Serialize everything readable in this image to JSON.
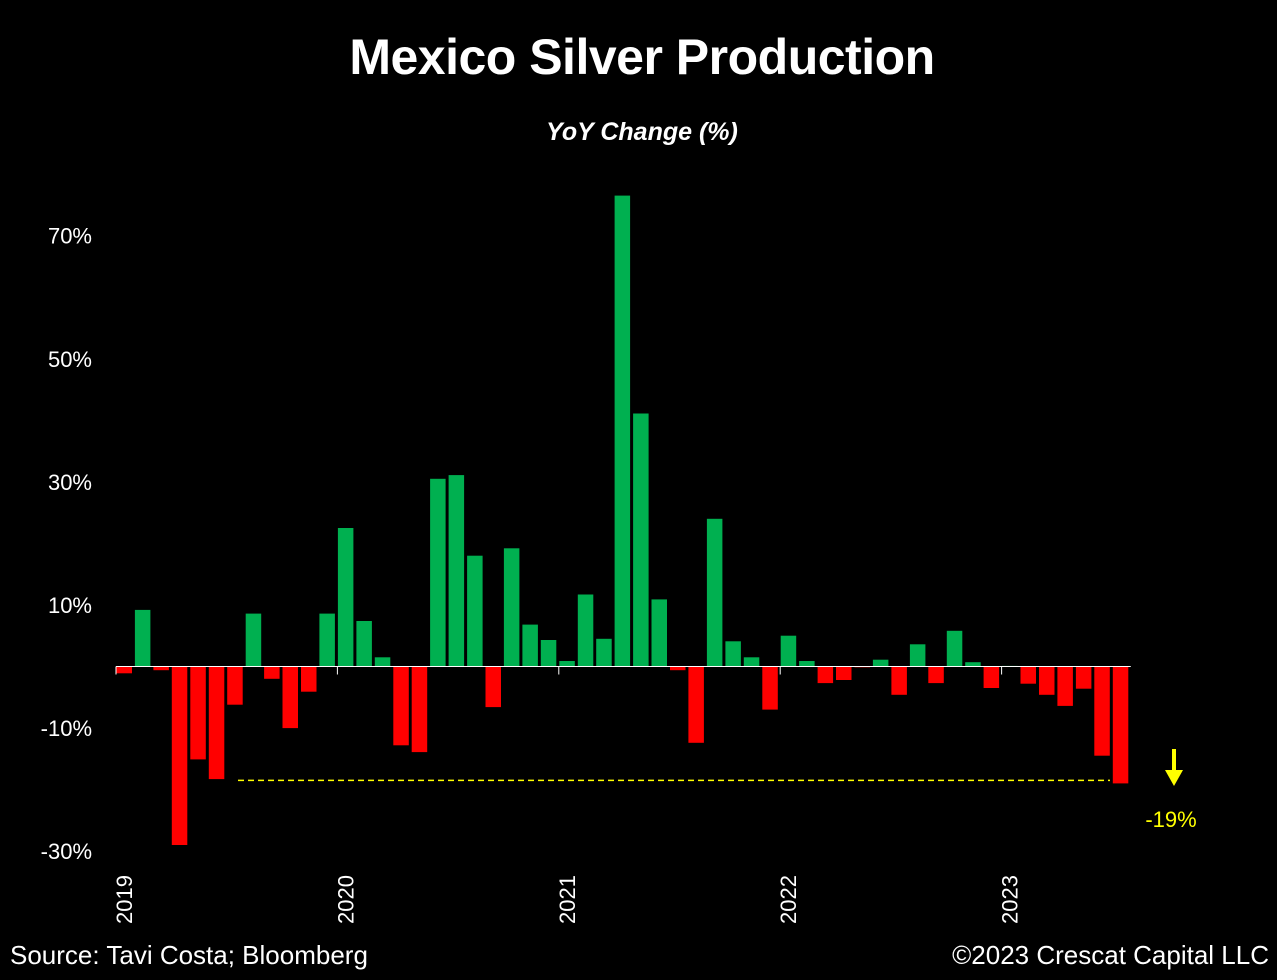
{
  "chart_data": {
    "type": "bar",
    "title": "Mexico Silver Production",
    "subtitle": "YoY Change (%)",
    "ylim": [
      -30,
      80
    ],
    "yticks": [
      70,
      50,
      30,
      10,
      -10,
      -30
    ],
    "ytick_labels": [
      "70%",
      "50%",
      "30%",
      "10%",
      "-10%",
      "-30%"
    ],
    "xtick_labels": [
      "2019",
      "2020",
      "2021",
      "2022",
      "2023"
    ],
    "grid": false,
    "positive_color": "#00b050",
    "negative_color": "#ff0000",
    "series": [
      {
        "x": [
          "2019-01",
          "2019-02",
          "2019-03",
          "2019-04",
          "2019-05",
          "2019-06",
          "2019-07",
          "2019-08",
          "2019-09",
          "2019-10",
          "2019-11",
          "2019-12",
          "2020-01",
          "2020-02",
          "2020-03",
          "2020-04",
          "2020-05",
          "2020-06",
          "2020-07",
          "2020-08",
          "2020-09",
          "2020-10",
          "2020-11",
          "2020-12",
          "2021-01",
          "2021-02",
          "2021-03",
          "2021-04",
          "2021-05",
          "2021-06",
          "2021-07",
          "2021-08",
          "2021-09",
          "2021-10",
          "2021-11",
          "2021-12",
          "2022-01",
          "2022-02",
          "2022-03",
          "2022-04",
          "2022-05",
          "2022-06",
          "2022-07",
          "2022-08",
          "2022-09",
          "2022-10",
          "2022-11",
          "2022-12",
          "2023-01",
          "2023-02",
          "2023-03",
          "2023-04",
          "2023-05",
          "2023-06",
          "2023-07",
          "2023-08"
        ],
        "values": [
          -1.1,
          9.2,
          -0.6,
          -29.0,
          -15.1,
          -18.3,
          -6.2,
          8.6,
          -2.0,
          -10.0,
          -4.1,
          8.6,
          22.5,
          7.4,
          1.5,
          -12.8,
          -13.9,
          30.5,
          31.1,
          18.0,
          -6.6,
          19.2,
          6.8,
          4.3,
          0.9,
          11.7,
          4.5,
          76.5,
          41.1,
          10.9,
          -0.6,
          -12.4,
          24.0,
          4.1,
          1.5,
          -7.0,
          5.0,
          0.9,
          -2.7,
          -2.2,
          -0.1,
          1.1,
          -4.6,
          3.6,
          -2.7,
          5.8,
          0.7,
          -3.5,
          0.1,
          -2.8,
          -4.6,
          -6.4,
          -3.6,
          -14.5,
          -19.0,
          0
        ]
      }
    ],
    "annotation": {
      "label": "-19%",
      "value": -18.5
    }
  },
  "footer": {
    "source": "Source: Tavi Costa; Bloomberg",
    "copyright": "©2023 Crescat Capital LLC"
  }
}
